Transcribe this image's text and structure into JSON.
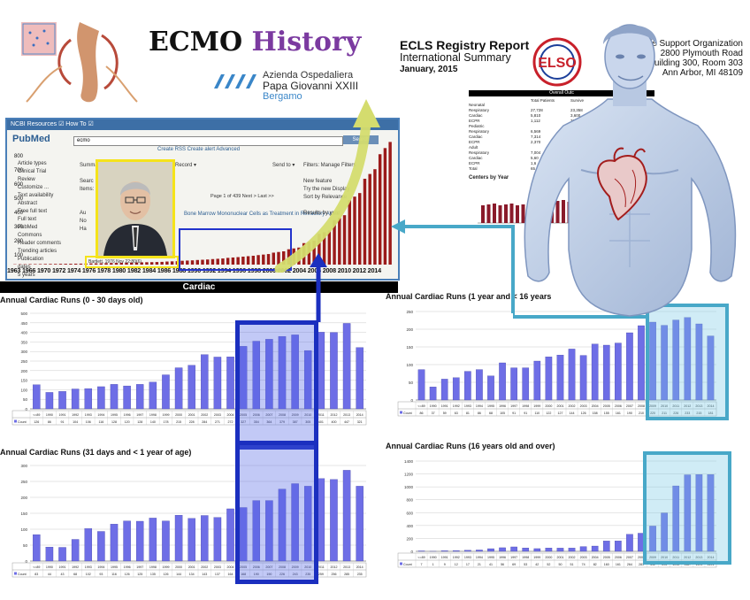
{
  "header": {
    "title_part1": "ECMO ",
    "title_part2": "History",
    "hospital_line1": "Azienda Ospedaliera",
    "hospital_line2": "Papa Giovanni XXIII",
    "hospital_line3": "Bergamo"
  },
  "report": {
    "title": "ECLS Registry Report",
    "subtitle": "International Summary",
    "date": "January, 2015",
    "org": "al Life Support Organization",
    "address1": "2800 Plymouth Road",
    "address2": "uilding 300, Room 303",
    "address3": "Ann Arbor, MI 48109",
    "table_header": "Overall Outc",
    "columns": [
      "Total Patients",
      "Survive",
      "DC or Transfer"
    ],
    "rows": [
      {
        "label": "Neonatal",
        "vals": [
          "",
          "",
          ""
        ]
      },
      {
        "label": "Respiratory",
        "vals": [
          "27,728",
          "23,358",
          "74%"
        ]
      },
      {
        "label": "Cardiac",
        "vals": [
          "5,810",
          "3,600",
          "41%"
        ]
      },
      {
        "label": "ECPR",
        "vals": [
          "1,112",
          "712",
          "41%"
        ]
      },
      {
        "label": "Pediatric",
        "vals": [
          "",
          "",
          ""
        ]
      },
      {
        "label": "Respiratory",
        "vals": [
          "6,569",
          "",
          ""
        ]
      },
      {
        "label": "Cardiac",
        "vals": [
          "7,314",
          "",
          ""
        ]
      },
      {
        "label": "ECPR",
        "vals": [
          "2,370",
          "",
          ""
        ]
      },
      {
        "label": "Adult",
        "vals": [
          "",
          "",
          ""
        ]
      },
      {
        "label": "Respiratory",
        "vals": [
          "7,004",
          "",
          ""
        ]
      },
      {
        "label": "Cardiac",
        "vals": [
          "5,60",
          "",
          ""
        ]
      },
      {
        "label": "ECPR",
        "vals": [
          "1,6",
          "",
          ""
        ]
      },
      {
        "label": "Total",
        "vals": [
          "65,",
          "",
          ""
        ]
      }
    ],
    "centers_label": "Centers by Year"
  },
  "pubmed": {
    "window_title": "NCBI   Resources ☑  How To ☑",
    "logo": "PubMed",
    "db": "PubMed",
    "query": "ecmo",
    "search_btn": "Search",
    "links": "Create RSS   Create alert   Advanced",
    "side_values": [
      "800",
      "700",
      "600",
      "500",
      "400",
      "300",
      "200",
      "100"
    ],
    "side_items": [
      "Article types",
      "Clinical Trial",
      "Review",
      "Customize ...",
      "Text availability",
      "Abstract",
      "Free full text",
      "Full text",
      "PubMed",
      "Commons",
      "Reader comments",
      "Trending articles",
      "Publication",
      "dates",
      "5 years"
    ],
    "mid_items": [
      "Summa",
      "",
      "Searc",
      "Items:",
      "",
      "",
      "Au",
      "No",
      "Ha"
    ],
    "right_items": [
      "Filters: Manage Filters",
      "",
      "New feature",
      "Try the new Display",
      "Sort by Relevance",
      "",
      "Results by year"
    ],
    "send_to": "Send to ▾",
    "record": "Record ▾",
    "pager": "Page 1 of 439   Next >   Last >>",
    "clinical": "Bone Marrow Mononuclear Cells as Treatment in Refractory Acute",
    "caption": "Bartlett, 1976 Nov 22:80(6)",
    "years_label": "1963 1966 1970 1972 1974 1976 1978 1980 1982 1984 1986 1988 1990 1992 1994 1996 1998 2000 2002 2004 2006 2008 2010 2012 2014"
  },
  "cardiac_label": "Cardiac",
  "chart_titles": {
    "tl": "Annual Cardiac Runs (0 - 30 days old)",
    "bl": "Annual Cardiac Runs (31 days and < 1 year of age)",
    "tr": "Annual Cardiac Runs (1 year and < 16 years",
    "br": "Annual Cardiac Runs (16 years old and over)"
  },
  "chart_data": [
    {
      "type": "bar",
      "title": "Annual Cardiac Runs (0 - 30 days old)",
      "categories": [
        "<=89",
        "1990",
        "1991",
        "1992",
        "1993",
        "1994",
        "1995",
        "1996",
        "1997",
        "1998",
        "1999",
        "2000",
        "2001",
        "2002",
        "2003",
        "2004",
        "2005",
        "2006",
        "2007",
        "2008",
        "2009",
        "2010",
        "2011",
        "2012",
        "2013",
        "2014"
      ],
      "series": [
        {
          "name": "Count",
          "values": [
            126,
            86,
            91,
            104,
            106,
            116,
            128,
            120,
            128,
            140,
            178,
            215,
            228,
            284,
            271,
            272,
            327,
            354,
            364,
            379,
            387,
            305,
            401,
            400,
            447,
            321
          ]
        }
      ],
      "ylim": [
        0,
        500
      ],
      "yticks": [
        0,
        50,
        100,
        150,
        200,
        250,
        300,
        350,
        400,
        450,
        500
      ]
    },
    {
      "type": "bar",
      "title": "Annual Cardiac Runs (31 days and < 1 year of age)",
      "categories": [
        "<=89",
        "1990",
        "1991",
        "1992",
        "1993",
        "1994",
        "1995",
        "1996",
        "1997",
        "1998",
        "1999",
        "2000",
        "2001",
        "2002",
        "2003",
        "2004",
        "2005",
        "2006",
        "2007",
        "2008",
        "2009",
        "2010",
        "2011",
        "2012",
        "2013",
        "2014"
      ],
      "series": [
        {
          "name": "Count",
          "values": [
            83,
            44,
            43,
            68,
            102,
            93,
            116,
            126,
            125,
            135,
            126,
            144,
            134,
            143,
            137,
            164,
            168,
            190,
            190,
            226,
            243,
            235,
            259,
            256,
            285,
            235
          ]
        }
      ],
      "ylim": [
        0,
        300
      ],
      "yticks": [
        0,
        50,
        100,
        150,
        200,
        250,
        300
      ]
    },
    {
      "type": "bar",
      "title": "Annual Cardiac Runs (1 year and < 16 years",
      "categories": [
        "<=89",
        "1990",
        "1991",
        "1992",
        "1993",
        "1994",
        "1995",
        "1996",
        "1997",
        "1998",
        "1999",
        "2000",
        "2001",
        "2002",
        "2003",
        "2004",
        "2005",
        "2006",
        "2007",
        "2008",
        "2009",
        "2010",
        "2011",
        "2012",
        "2013",
        "2014"
      ],
      "series": [
        {
          "name": "Count",
          "values": [
            86,
            37,
            59,
            63,
            81,
            86,
            68,
            105,
            91,
            91,
            110,
            122,
            127,
            144,
            126,
            158,
            155,
            161,
            190,
            210,
            220,
            211,
            226,
            233,
            215,
            181
          ]
        }
      ],
      "ylim": [
        0,
        250
      ],
      "yticks": [
        0,
        50,
        100,
        150,
        200,
        250
      ]
    },
    {
      "type": "bar",
      "title": "Annual Cardiac Runs (16 years old and over)",
      "categories": [
        "<=89",
        "1990",
        "1991",
        "1992",
        "1993",
        "1994",
        "1995",
        "1996",
        "1997",
        "1998",
        "1999",
        "2000",
        "2001",
        "2002",
        "2003",
        "2004",
        "2005",
        "2006",
        "2007",
        "2008",
        "2009",
        "2010",
        "2011",
        "2012",
        "2013",
        "2014"
      ],
      "series": [
        {
          "name": "Count",
          "values": [
            7,
            1,
            9,
            12,
            17,
            21,
            41,
            56,
            69,
            53,
            42,
            52,
            50,
            51,
            74,
            82,
            160,
            161,
            264,
            281,
            392,
            595,
            1015,
            1187,
            1191,
            1191
          ]
        }
      ],
      "ylim": [
        0,
        1400
      ],
      "yticks": [
        0,
        200,
        400,
        600,
        800,
        1000,
        1200,
        1400
      ]
    },
    {
      "type": "bar",
      "title": "",
      "categories": [
        "1963",
        "1966",
        "1970",
        "1972",
        "1974",
        "1976",
        "1978",
        "1980",
        "1982",
        "1984",
        "1986",
        "1988",
        "1990",
        "1992",
        "1994",
        "1996",
        "1998",
        "2000",
        "2002",
        "2004",
        "2006",
        "2008",
        "2010",
        "2012",
        "2014"
      ],
      "series": [
        {
          "name": "",
          "values": [
            2,
            3,
            4,
            5,
            6,
            8,
            10,
            12,
            14,
            16,
            20,
            25,
            30,
            36,
            44,
            52,
            62,
            78,
            100,
            140,
            200,
            290,
            420,
            560,
            720
          ]
        }
      ],
      "ylim": [
        0,
        800
      ]
    }
  ],
  "colors": {
    "bar_blue": "#6e6ee6",
    "bar_dark_red": "#9b1a1a",
    "highlight_blue": "#1b2fbf",
    "highlight_cyan": "#48a8c8",
    "yellow": "#f5e31a",
    "arrow_green": "#cfd76a"
  },
  "icons": [
    "heart-icon",
    "elso-logo-icon",
    "hospital-logo-icon",
    "upward-arrow-icon",
    "portrait-photo",
    "anatomy-illustration"
  ]
}
